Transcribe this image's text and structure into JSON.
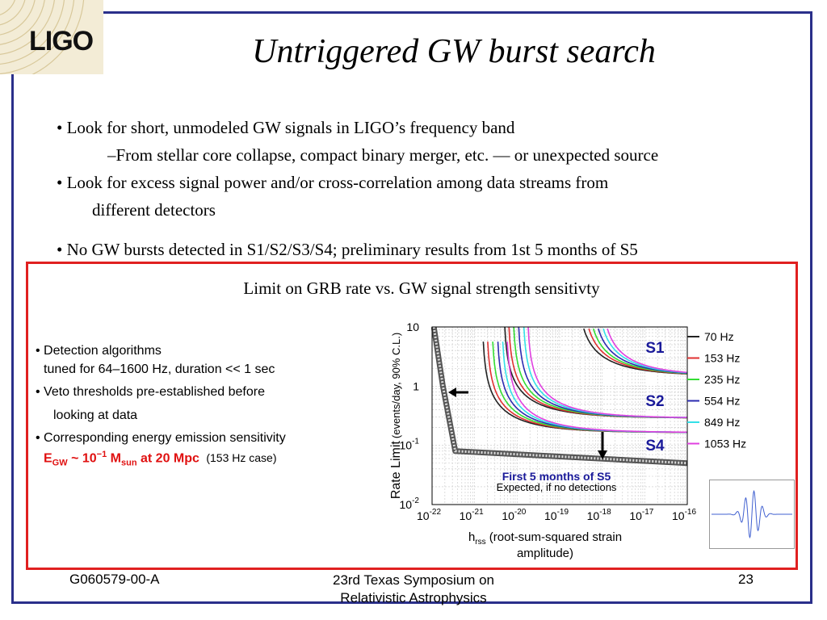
{
  "logo": {
    "text": "LIGO"
  },
  "title": "Untriggered GW burst search",
  "bullets": {
    "b1": "• Look for short, unmodeled GW signals in LIGO’s frequency band",
    "b1_sub": "–From stellar core collapse, compact binary merger, etc. — or unexpected source",
    "b2": "• Look for excess signal power and/or cross-correlation among data streams from",
    "b2_cont": "different detectors",
    "b3": "• No GW bursts detected in S1/S2/S3/S4; preliminary results from 1st 5 months of S5"
  },
  "box_title": "Limit on GRB rate vs. GW signal strength sensitivty",
  "side": {
    "l1": "• Detection algorithms",
    "l2": "tuned for 64–1600 Hz, duration << 1 sec",
    "l3": "• Veto thresholds pre-established before",
    "l4": "looking at data",
    "l5": "• Corresponding energy emission sensitivity",
    "eq_E": "E",
    "eq_Esub": "GW",
    "eq_approx": " ~ 10",
    "eq_exp": "−1",
    "eq_M": " M",
    "eq_Msub": "sun",
    "eq_at": " at 20 Mpc",
    "eq_case": "(153 Hz case)"
  },
  "chart_data": {
    "type": "line",
    "xlabel_main": "h",
    "xlabel_sub": "rss",
    "xlabel_rest": " (root-sum-squared strain",
    "xlabel_line2": "amplitude)",
    "ylabel_main": "Rate Limit",
    "ylabel_rest": "(events/day, 90% C.L.)",
    "x_scale": "log",
    "y_scale": "log",
    "xlim": [
      1e-22,
      1e-16
    ],
    "ylim": [
      0.01,
      10
    ],
    "x_ticks": [
      {
        "v": 1e-22,
        "label": "10-22"
      },
      {
        "v": 1e-21,
        "label": "10-21"
      },
      {
        "v": 1e-20,
        "label": "10-20"
      },
      {
        "v": 1e-19,
        "label": "10-19"
      },
      {
        "v": 1e-18,
        "label": "10-18"
      },
      {
        "v": 1e-17,
        "label": "10-17"
      },
      {
        "v": 1e-16,
        "label": "10-16"
      }
    ],
    "y_ticks": [
      {
        "v": 10,
        "label": "10"
      },
      {
        "v": 1,
        "label": "1"
      },
      {
        "v": 0.1,
        "label": "10-1"
      },
      {
        "v": 0.01,
        "label": "10-2"
      }
    ],
    "frequency_legend": [
      {
        "name": "70 Hz",
        "color": "#222222"
      },
      {
        "name": "153 Hz",
        "color": "#e03030"
      },
      {
        "name": "235 Hz",
        "color": "#33dd33"
      },
      {
        "name": "554 Hz",
        "color": "#2b2bb0"
      },
      {
        "name": "849 Hz",
        "color": "#33e0e8"
      },
      {
        "name": "1053 Hz",
        "color": "#e040e0"
      }
    ],
    "run_labels": [
      "S1",
      "S2",
      "S4"
    ],
    "runs": {
      "S1": {
        "plateau": 1.5,
        "x0": [
          2.5e-19,
          3.3e-19,
          4.2e-19,
          5.5e-19,
          7.2e-19,
          9e-19
        ]
      },
      "S2": {
        "plateau": 0.29,
        "x0": [
          4.8e-21,
          6e-21,
          7.8e-21,
          1.02e-20,
          1.35e-20,
          1.7e-20
        ]
      },
      "S4": {
        "plateau": 0.165,
        "x0": [
          1.5e-21,
          1.9e-21,
          2.5e-21,
          3.3e-21,
          4.3e-21,
          5.5e-21
        ]
      }
    },
    "s5": {
      "label": "First 5 months of S5",
      "plateau": 0.05,
      "x": [
        1.1e-22,
        1.8e-22,
        3.5e-22,
        1e-16
      ],
      "y": [
        10,
        1.0,
        0.08,
        0.05
      ]
    },
    "expected_label": "Expected, if no detections"
  },
  "footer": {
    "left": "G060579-00-A",
    "center_l1": "23rd Texas Symposium on",
    "center_l2": "Relativistic Astrophysics",
    "page": "23"
  }
}
